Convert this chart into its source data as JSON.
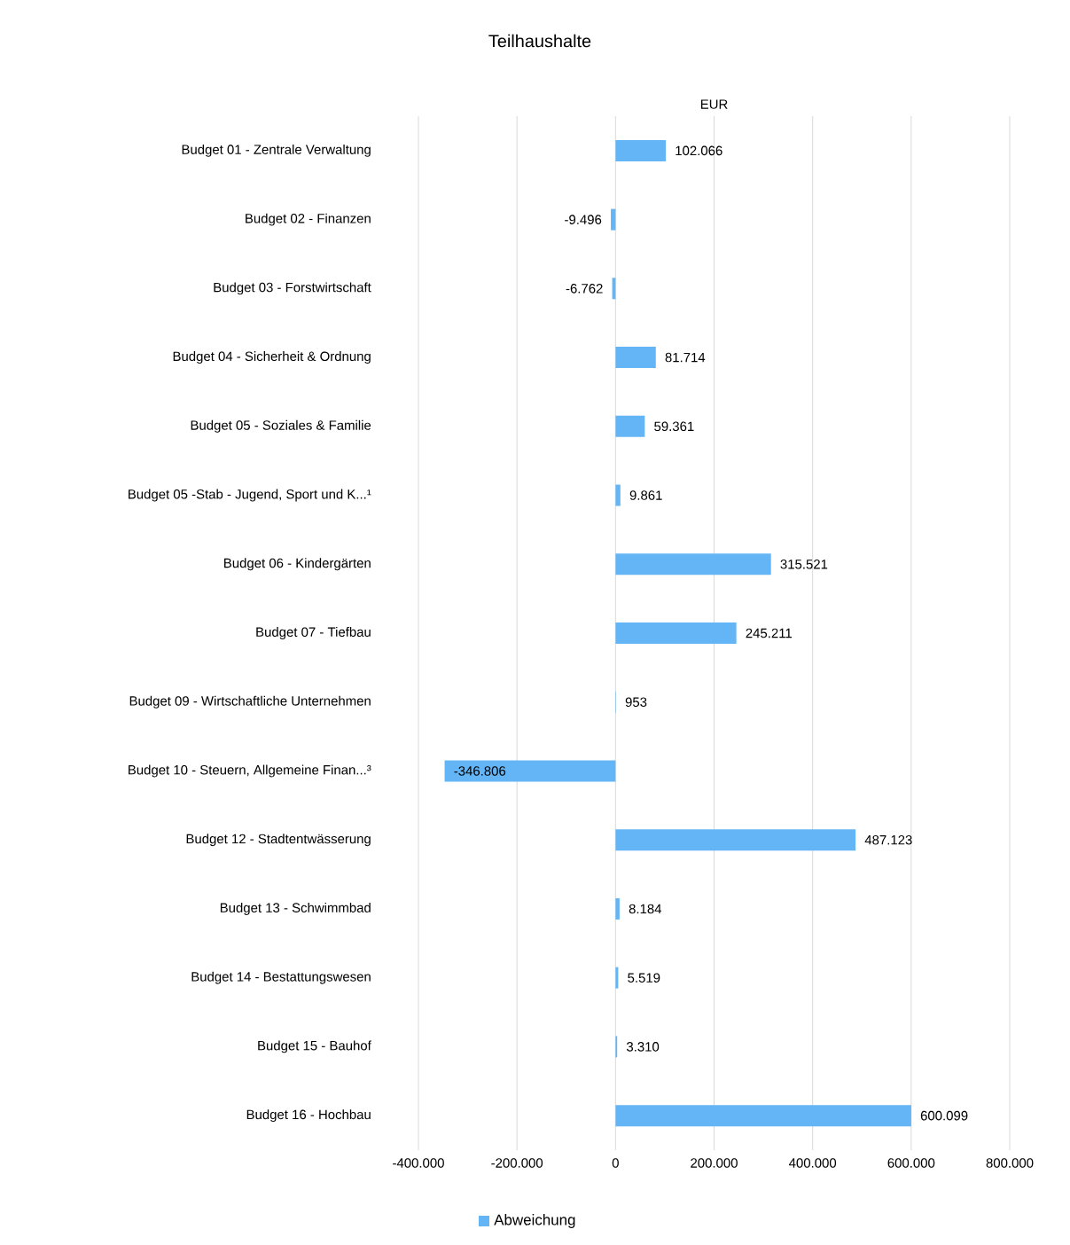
{
  "chart_data": {
    "type": "bar",
    "orientation": "horizontal",
    "title": "Teilhaushalte",
    "xlabel": "EUR",
    "categories": [
      "Budget 01 - Zentrale Verwaltung",
      "Budget 02 - Finanzen",
      "Budget 03 - Forstwirtschaft",
      "Budget 04 - Sicherheit & Ordnung",
      "Budget 05 - Soziales & Familie",
      "Budget 05 -Stab - Jugend, Sport und K...¹",
      "Budget 06 - Kindergärten",
      "Budget 07 - Tiefbau",
      "Budget 09 - Wirtschaftliche Unternehmen",
      "Budget 10 - Steuern, Allgemeine Finan...³",
      "Budget 12 - Stadtentwässerung",
      "Budget 13 - Schwimmbad",
      "Budget 14 - Bestattungswesen",
      "Budget 15 - Bauhof",
      "Budget 16 - Hochbau"
    ],
    "series": [
      {
        "name": "Abweichung",
        "color": "#63b5f5",
        "values": [
          102066,
          -9496,
          -6762,
          81714,
          59361,
          9861,
          315521,
          245211,
          953,
          -346806,
          487123,
          8184,
          5519,
          3310,
          600099
        ],
        "value_labels": [
          "102.066",
          "-9.496",
          "-6.762",
          "81.714",
          "59.361",
          "9.861",
          "315.521",
          "245.211",
          "953",
          "-346.806",
          "487.123",
          "8.184",
          "5.519",
          "3.310",
          "600.099"
        ]
      }
    ],
    "xlim": [
      -400000,
      800000
    ],
    "xticks": [
      {
        "value": -400000,
        "label": "-400.000"
      },
      {
        "value": -200000,
        "label": "-200.000"
      },
      0,
      {
        "value": 200000,
        "label": "200.000"
      },
      {
        "value": 400000,
        "label": "400.000"
      },
      {
        "value": 600000,
        "label": "600.000"
      },
      {
        "value": 800000,
        "label": "800.000"
      }
    ],
    "grid": "x",
    "legend": "bottom"
  }
}
